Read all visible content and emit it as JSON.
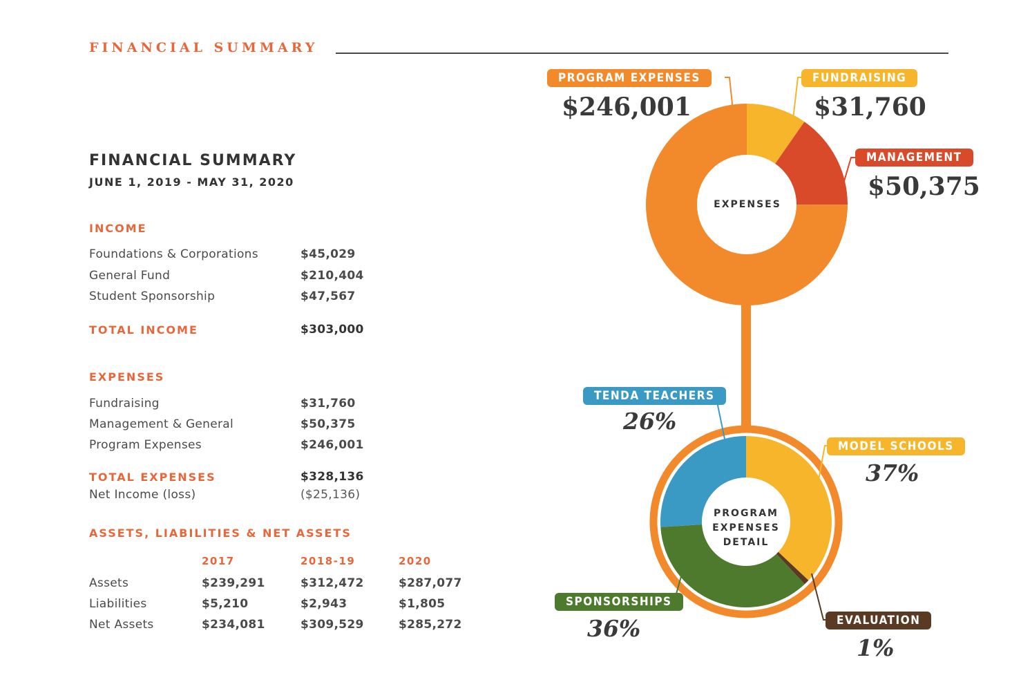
{
  "header": {
    "title": "FINANCIAL SUMMARY"
  },
  "summary": {
    "title": "FINANCIAL SUMMARY",
    "period": "JUNE 1, 2019 -  MAY 31, 2020"
  },
  "income": {
    "heading": "INCOME",
    "rows": [
      {
        "label": "Foundations & Corporations",
        "value": "$45,029"
      },
      {
        "label": "General Fund",
        "value": "$210,404"
      },
      {
        "label": "Student Sponsorship",
        "value": "$47,567"
      }
    ],
    "total_label": "TOTAL INCOME",
    "total_value": "$303,000"
  },
  "expenses": {
    "heading": "EXPENSES",
    "rows": [
      {
        "label": "Fundraising",
        "value": "$31,760"
      },
      {
        "label": "Management & General",
        "value": "$50,375"
      },
      {
        "label": "Program Expenses",
        "value": "$246,001"
      }
    ],
    "total_label": "TOTAL EXPENSES",
    "total_value": "$328,136",
    "net_label": "Net Income (loss)",
    "net_value": "($25,136)"
  },
  "assets": {
    "heading": "ASSETS, LIABILITIES & NET ASSETS",
    "years": [
      "2017",
      "2018-19",
      "2020"
    ],
    "rows": [
      {
        "label": "Assets",
        "values": [
          "$239,291",
          "$312,472",
          "$287,077"
        ]
      },
      {
        "label": "Liabilities",
        "values": [
          "$5,210",
          "$2,943",
          "$1,805"
        ]
      },
      {
        "label": "Net Assets",
        "values": [
          "$234,081",
          "$309,529",
          "$285,272"
        ]
      }
    ]
  },
  "chart_data": [
    {
      "type": "pie",
      "center_label": "EXPENSES",
      "categories": [
        "PROGRAM EXPENSES",
        "FUNDRAISING",
        "MANAGEMENT"
      ],
      "values": [
        246001,
        31760,
        50375
      ],
      "value_labels": [
        "$246,001",
        "$31,760",
        "$50,375"
      ],
      "colors": [
        "#f28a2c",
        "#f7b52b",
        "#d94a2b"
      ]
    },
    {
      "type": "pie",
      "center_label": [
        "PROGRAM",
        "EXPENSES",
        "DETAIL"
      ],
      "categories": [
        "MODEL SCHOOLS",
        "EVALUATION",
        "SPONSORSHIPS",
        "TENDA TEACHERS"
      ],
      "values": [
        37,
        1,
        36,
        26
      ],
      "value_labels": [
        "37%",
        "1%",
        "36%",
        "26%"
      ],
      "colors": [
        "#f7b52b",
        "#5a3a22",
        "#4e7a2e",
        "#3a9ac4"
      ]
    }
  ]
}
